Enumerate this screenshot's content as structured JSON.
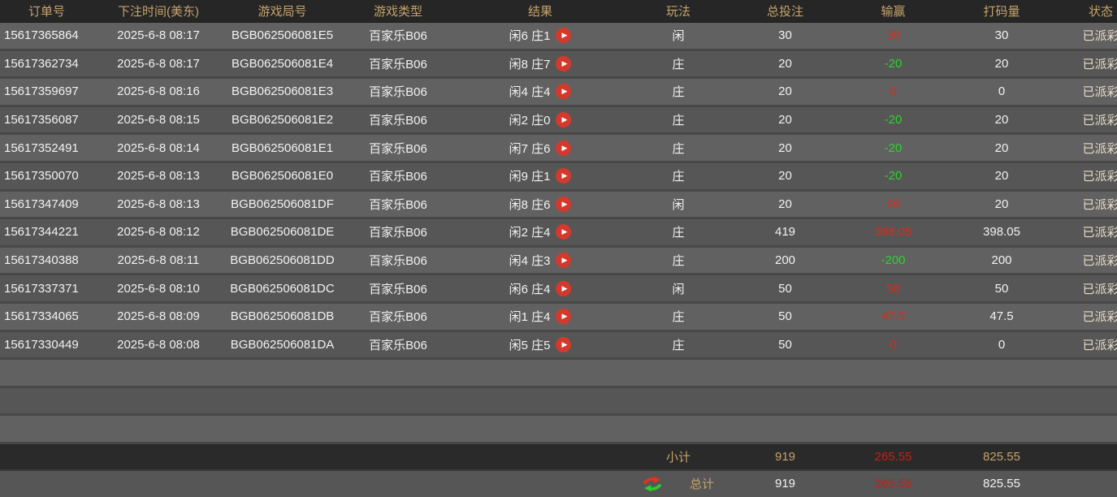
{
  "table": {
    "columns": [
      "订单号",
      "下注时间(美东)",
      "游戏局号",
      "游戏类型",
      "结果",
      "玩法",
      "总投注",
      "输赢",
      "打码量",
      "状态"
    ],
    "rows": [
      {
        "order_id": "15617365864",
        "bet_time": "2025-6-8 08:17",
        "round_id": "BGB062506081E5",
        "game_type": "百家乐B06",
        "result": "闲6 庄1",
        "play": "闲",
        "total_bet": "30",
        "win_loss": "30",
        "win_loss_color": "red",
        "wager": "30",
        "status": "已派彩"
      },
      {
        "order_id": "15617362734",
        "bet_time": "2025-6-8 08:17",
        "round_id": "BGB062506081E4",
        "game_type": "百家乐B06",
        "result": "闲8 庄7",
        "play": "庄",
        "total_bet": "20",
        "win_loss": "-20",
        "win_loss_color": "green",
        "wager": "20",
        "status": "已派彩"
      },
      {
        "order_id": "15617359697",
        "bet_time": "2025-6-8 08:16",
        "round_id": "BGB062506081E3",
        "game_type": "百家乐B06",
        "result": "闲4 庄4",
        "play": "庄",
        "total_bet": "20",
        "win_loss": "0",
        "win_loss_color": "red",
        "wager": "0",
        "status": "已派彩"
      },
      {
        "order_id": "15617356087",
        "bet_time": "2025-6-8 08:15",
        "round_id": "BGB062506081E2",
        "game_type": "百家乐B06",
        "result": "闲2 庄0",
        "play": "庄",
        "total_bet": "20",
        "win_loss": "-20",
        "win_loss_color": "green",
        "wager": "20",
        "status": "已派彩"
      },
      {
        "order_id": "15617352491",
        "bet_time": "2025-6-8 08:14",
        "round_id": "BGB062506081E1",
        "game_type": "百家乐B06",
        "result": "闲7 庄6",
        "play": "庄",
        "total_bet": "20",
        "win_loss": "-20",
        "win_loss_color": "green",
        "wager": "20",
        "status": "已派彩"
      },
      {
        "order_id": "15617350070",
        "bet_time": "2025-6-8 08:13",
        "round_id": "BGB062506081E0",
        "game_type": "百家乐B06",
        "result": "闲9 庄1",
        "play": "庄",
        "total_bet": "20",
        "win_loss": "-20",
        "win_loss_color": "green",
        "wager": "20",
        "status": "已派彩"
      },
      {
        "order_id": "15617347409",
        "bet_time": "2025-6-8 08:13",
        "round_id": "BGB062506081DF",
        "game_type": "百家乐B06",
        "result": "闲8 庄6",
        "play": "闲",
        "total_bet": "20",
        "win_loss": "20",
        "win_loss_color": "red",
        "wager": "20",
        "status": "已派彩"
      },
      {
        "order_id": "15617344221",
        "bet_time": "2025-6-8 08:12",
        "round_id": "BGB062506081DE",
        "game_type": "百家乐B06",
        "result": "闲2 庄4",
        "play": "庄",
        "total_bet": "419",
        "win_loss": "398.05",
        "win_loss_color": "red",
        "wager": "398.05",
        "status": "已派彩"
      },
      {
        "order_id": "15617340388",
        "bet_time": "2025-6-8 08:11",
        "round_id": "BGB062506081DD",
        "game_type": "百家乐B06",
        "result": "闲4 庄3",
        "play": "庄",
        "total_bet": "200",
        "win_loss": "-200",
        "win_loss_color": "green",
        "wager": "200",
        "status": "已派彩"
      },
      {
        "order_id": "15617337371",
        "bet_time": "2025-6-8 08:10",
        "round_id": "BGB062506081DC",
        "game_type": "百家乐B06",
        "result": "闲6 庄4",
        "play": "闲",
        "total_bet": "50",
        "win_loss": "50",
        "win_loss_color": "red",
        "wager": "50",
        "status": "已派彩"
      },
      {
        "order_id": "15617334065",
        "bet_time": "2025-6-8 08:09",
        "round_id": "BGB062506081DB",
        "game_type": "百家乐B06",
        "result": "闲1 庄4",
        "play": "庄",
        "total_bet": "50",
        "win_loss": "47.5",
        "win_loss_color": "red",
        "wager": "47.5",
        "status": "已派彩"
      },
      {
        "order_id": "15617330449",
        "bet_time": "2025-6-8 08:08",
        "round_id": "BGB062506081DA",
        "game_type": "百家乐B06",
        "result": "闲5 庄5",
        "play": "庄",
        "total_bet": "50",
        "win_loss": "0",
        "win_loss_color": "red",
        "wager": "0",
        "status": "已派彩"
      }
    ],
    "empty_row_count": 3,
    "play_icon_glyph": "▶",
    "footer": {
      "subtotal": {
        "label": "小计",
        "total_bet": "919",
        "win_loss": "265.55",
        "wager": "825.55"
      },
      "total": {
        "label": "总计",
        "total_bet": "919",
        "win_loss": "265.55",
        "wager": "825.55"
      }
    }
  },
  "colors": {
    "header_text_gold": "#c6a36a",
    "win_red": "#d92b1a",
    "loss_green": "#2bd52b",
    "play_icon_red": "#d4392c",
    "row_odd": "#616161",
    "row_even": "#565656",
    "header_bg": "#262626",
    "subtotal_bg": "#2a2a2a"
  }
}
